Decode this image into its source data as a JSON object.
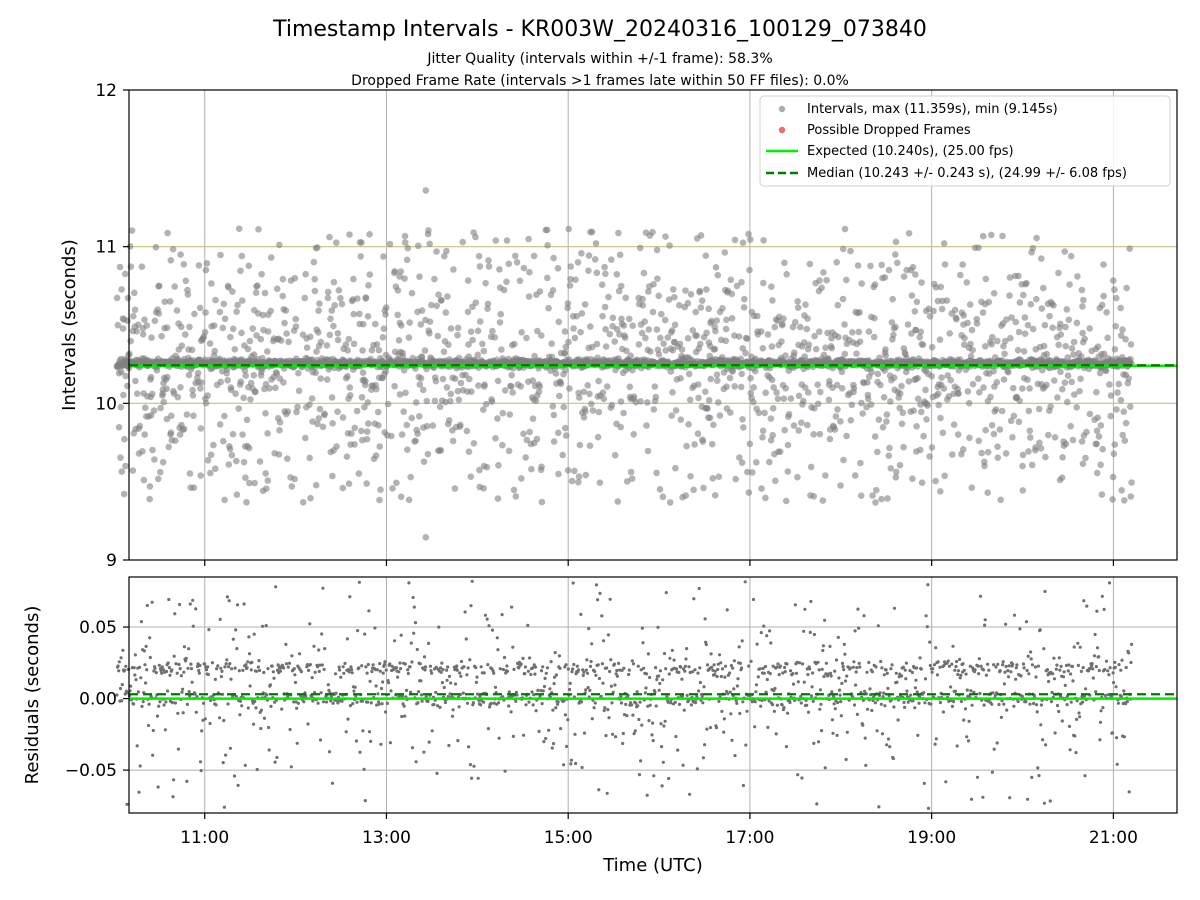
{
  "figure": {
    "title": "Timestamp Intervals - KR003W_20240316_100129_073840",
    "subtitle_1": "Jitter Quality (intervals within +/-1 frame): 58.3%",
    "subtitle_2": "Dropped Frame Rate (intervals >1 frames late within 50 FF files): 0.0%"
  },
  "colors": {
    "points": "#808080",
    "dropped": "#f05050",
    "expected": "#00ee00",
    "median": "#007a00",
    "band": "#c8c080",
    "grid": "#b0b0b0"
  },
  "chart_data": [
    {
      "type": "scatter",
      "panel": "top",
      "ylabel": "Intervals (seconds)",
      "xlabel": "",
      "xlim": [
        "10:10",
        "21:42"
      ],
      "ylim": [
        9,
        12
      ],
      "y_ticks": [
        "9",
        "10",
        "11",
        "12"
      ],
      "x_ticks": [
        "11:00",
        "13:00",
        "15:00",
        "17:00",
        "19:00",
        "21:00"
      ],
      "grid": true,
      "legend_position": "top-right",
      "legend": [
        "Intervals, max (11.359s), min (9.145s)",
        "Possible Dropped Frames",
        "Expected (10.240s), (25.00 fps)",
        "Median (10.243 +/- 0.243 s), (24.99 +/- 6.08 fps)"
      ],
      "series": [
        {
          "name": "Intervals, max (11.359s), min (9.145s)",
          "kind": "points",
          "x_range": [
            "10:02",
            "21:12"
          ],
          "y_max": 11.359,
          "y_min": 9.145,
          "approx_count": 3900
        },
        {
          "name": "Possible Dropped Frames",
          "kind": "points",
          "values": []
        },
        {
          "name": "Expected (10.240s), (25.00 fps)",
          "kind": "hline",
          "y": 10.24
        },
        {
          "name": "Median (10.243 +/- 0.243 s), (24.99 +/- 6.08 fps)",
          "kind": "hline",
          "y": 10.243
        }
      ],
      "bands": [
        10.0,
        11.0
      ]
    },
    {
      "type": "scatter",
      "panel": "bottom",
      "ylabel": "Residuals (seconds)",
      "xlabel": "Time (UTC)",
      "xlim": [
        "10:10",
        "21:42"
      ],
      "ylim": [
        -0.08,
        0.085
      ],
      "y_ticks": [
        "0.05",
        "0.00",
        "−0.05"
      ],
      "x_ticks": [
        "11:00",
        "13:00",
        "15:00",
        "17:00",
        "19:00",
        "21:00"
      ],
      "grid": true,
      "series": [
        {
          "name": "Residuals",
          "kind": "points",
          "approx_count": 1700
        },
        {
          "name": "Expected",
          "kind": "hline",
          "y": 0.0
        },
        {
          "name": "Median",
          "kind": "hline",
          "y": 0.003
        }
      ]
    }
  ]
}
